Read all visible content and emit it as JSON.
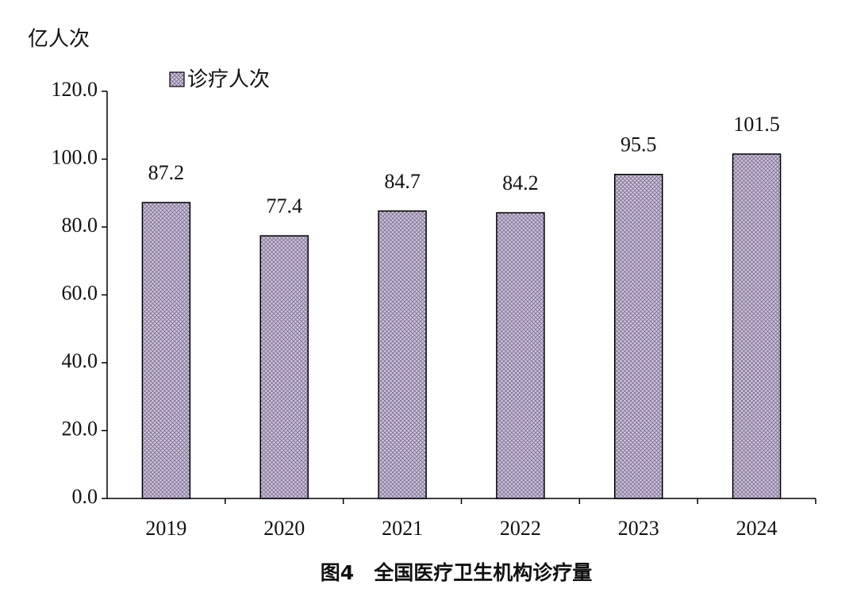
{
  "chart_data": {
    "type": "bar",
    "title": "图4　全国医疗卫生机构诊疗量",
    "y_axis_label": "亿人次",
    "categories": [
      "2019",
      "2020",
      "2021",
      "2022",
      "2023",
      "2024"
    ],
    "series": [
      {
        "name": "诊疗人次",
        "color": "#cfc6dc",
        "values": [
          87.2,
          77.4,
          84.7,
          84.2,
          95.5,
          101.5
        ]
      }
    ],
    "ylim": [
      0,
      120
    ],
    "yticks": [
      {
        "value": 0,
        "label": "0.0"
      },
      {
        "value": 20,
        "label": "20.0"
      },
      {
        "value": 40,
        "label": "40.0"
      },
      {
        "value": 60,
        "label": "60.0"
      },
      {
        "value": 80,
        "label": "80.0"
      },
      {
        "value": 100,
        "label": "100.0"
      },
      {
        "value": 120,
        "label": "120.0"
      }
    ],
    "grid": false,
    "legend": "top-left"
  }
}
